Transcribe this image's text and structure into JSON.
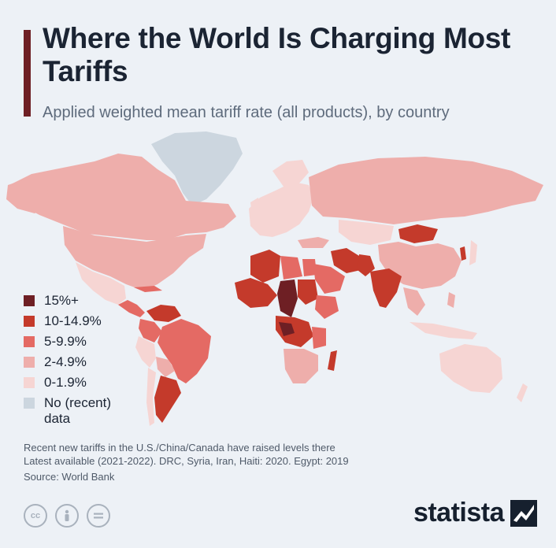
{
  "title": "Where the World Is Charging Most Tariffs",
  "subtitle": "Applied weighted mean tariff rate (all products), by country",
  "colors": {
    "bracket_15_plus": "#6e1f24",
    "bracket_10_14_9": "#c43a2b",
    "bracket_5_9_9": "#e46a64",
    "bracket_2_4_9": "#eeaeab",
    "bracket_0_1_9": "#f6d5d3",
    "no_data": "#ccd6df",
    "accent_bar": "#6e1f24",
    "background": "#edf1f6"
  },
  "legend": [
    {
      "label": "15%+",
      "color": "#6e1f24"
    },
    {
      "label": "10-14.9%",
      "color": "#c43a2b"
    },
    {
      "label": "5-9.9%",
      "color": "#e46a64"
    },
    {
      "label": "2-4.9%",
      "color": "#eeaeab"
    },
    {
      "label": "0-1.9%",
      "color": "#f6d5d3"
    },
    {
      "label": "No (recent)\ndata",
      "color": "#ccd6df"
    }
  ],
  "footnotes": [
    "Recent new tariffs in the U.S./China/Canada have raised levels there",
    "Latest available (2021-2022). DRC, Syria, Iran, Haiti: 2020. Egypt: 2019"
  ],
  "source": "Source: World Bank",
  "brand": "statista",
  "license_icons": [
    "creative-commons-icon",
    "attribution-icon",
    "no-derivatives-icon"
  ],
  "regions": [
    {
      "name": "Canada",
      "bracket": "2-4.9%"
    },
    {
      "name": "Greenland",
      "bracket": "No (recent) data"
    },
    {
      "name": "United States",
      "bracket": "2-4.9%"
    },
    {
      "name": "Mexico",
      "bracket": "0-1.9%"
    },
    {
      "name": "Central America",
      "bracket": "5-9.9%"
    },
    {
      "name": "Venezuela",
      "bracket": "10-14.9%"
    },
    {
      "name": "Colombia",
      "bracket": "5-9.9%"
    },
    {
      "name": "Brazil",
      "bracket": "5-9.9%"
    },
    {
      "name": "Peru",
      "bracket": "0-1.9%"
    },
    {
      "name": "Bolivia",
      "bracket": "2-4.9%"
    },
    {
      "name": "Argentina",
      "bracket": "10-14.9%"
    },
    {
      "name": "Chile",
      "bracket": "0-1.9%"
    },
    {
      "name": "Europe",
      "bracket": "0-1.9%"
    },
    {
      "name": "Russia",
      "bracket": "2-4.9%"
    },
    {
      "name": "Mongolia",
      "bracket": "10-14.9%"
    },
    {
      "name": "China",
      "bracket": "2-4.9%"
    },
    {
      "name": "Iran",
      "bracket": "10-14.9%"
    },
    {
      "name": "India",
      "bracket": "10-14.9%"
    },
    {
      "name": "Pakistan",
      "bracket": "10-14.9%"
    },
    {
      "name": "Saudi Arabia",
      "bracket": "5-9.9%"
    },
    {
      "name": "Algeria",
      "bracket": "10-14.9%"
    },
    {
      "name": "Chad",
      "bracket": "15%+"
    },
    {
      "name": "West Africa",
      "bracket": "10-14.9%"
    },
    {
      "name": "Central Africa",
      "bracket": "10-14.9%"
    },
    {
      "name": "East Africa",
      "bracket": "5-9.9%"
    },
    {
      "name": "Southern Africa",
      "bracket": "2-4.9%"
    },
    {
      "name": "Madagascar",
      "bracket": "10-14.9%"
    },
    {
      "name": "Australia",
      "bracket": "0-1.9%"
    },
    {
      "name": "Southeast Asia",
      "bracket": "2-4.9%"
    },
    {
      "name": "Indonesia",
      "bracket": "0-1.9%"
    },
    {
      "name": "Kazakhstan",
      "bracket": "0-1.9%"
    },
    {
      "name": "Egypt",
      "bracket": "5-9.9%"
    },
    {
      "name": "Sudan",
      "bracket": "10-14.9%"
    }
  ]
}
